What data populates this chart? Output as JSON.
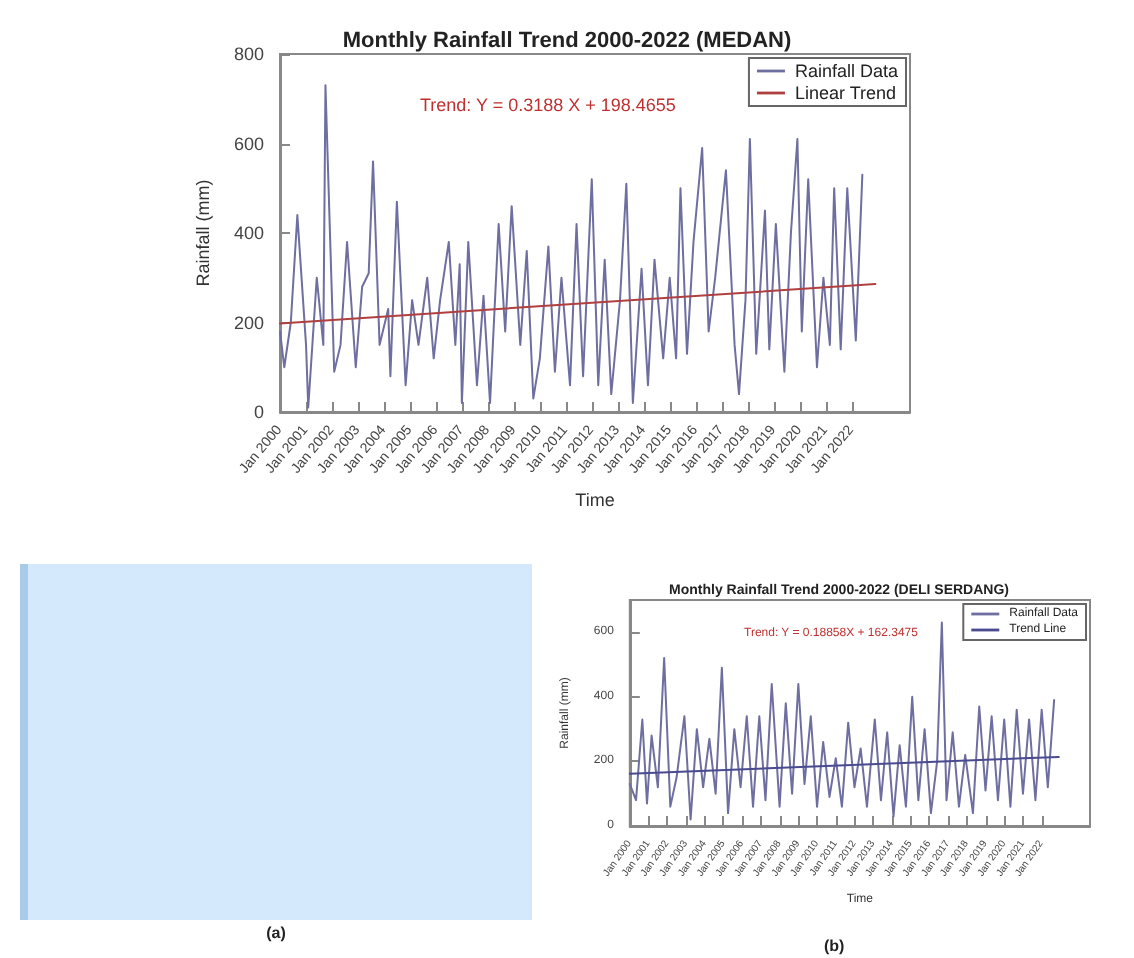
{
  "chart_data": [
    {
      "type": "line",
      "title": "Monthly Rainfall Trend 2000-2022 (MEDAN)",
      "xlabel": "Time",
      "ylabel": "Rainfall (mm)",
      "annotations": [
        "Trend: Y = 0.3188 X + 198.4655"
      ],
      "legend": "top right",
      "xlim": [
        "2000-01",
        "2024-04"
      ],
      "xticks": [
        {
          "value": "2000-01",
          "label": "Jan 2000"
        },
        {
          "value": "2001-01",
          "label": "Jan 2001"
        },
        {
          "value": "2002-01",
          "label": "Jan 2002"
        },
        {
          "value": "2003-01",
          "label": "Jan 2003"
        },
        {
          "value": "2004-01",
          "label": "Jan 2004"
        },
        {
          "value": "2005-01",
          "label": "Jan 2005"
        },
        {
          "value": "2006-01",
          "label": "Jan 2006"
        },
        {
          "value": "2007-01",
          "label": "Jan 2007"
        },
        {
          "value": "2008-01",
          "label": "Jan 2008"
        },
        {
          "value": "2009-01",
          "label": "Jan 2009"
        },
        {
          "value": "2010-01",
          "label": "Jan 2010"
        },
        {
          "value": "2011-01",
          "label": "Jan 2011"
        },
        {
          "value": "2012-01",
          "label": "Jan 2012"
        },
        {
          "value": "2013-01",
          "label": "Jan 2013"
        },
        {
          "value": "2014-01",
          "label": "Jan 2014"
        },
        {
          "value": "2015-01",
          "label": "Jan 2015"
        },
        {
          "value": "2016-01",
          "label": "Jan 2016"
        },
        {
          "value": "2017-01",
          "label": "Jan 2017"
        },
        {
          "value": "2018-01",
          "label": "Jan 2018"
        },
        {
          "value": "2019-01",
          "label": "Jan 2019"
        },
        {
          "value": "2020-01",
          "label": "Jan 2020"
        },
        {
          "value": "2021-01",
          "label": "Jan 2021"
        },
        {
          "value": "2022-01",
          "label": "Jan 2022"
        }
      ],
      "ylim": [
        0,
        800
      ],
      "yticks": [
        0,
        200,
        400,
        600,
        800
      ],
      "series": [
        {
          "name": "Rainfall Data",
          "color": "#6e6ea0",
          "x": [
            "2000-01",
            "2000-03",
            "2000-06",
            "2000-09",
            "2001-01",
            "2001-02",
            "2001-06",
            "2001-09",
            "2001-10",
            "2002-02",
            "2002-05",
            "2002-08",
            "2002-12",
            "2003-03",
            "2003-06",
            "2003-08",
            "2003-11",
            "2004-03",
            "2004-04",
            "2004-07",
            "2004-11",
            "2005-02",
            "2005-05",
            "2005-09",
            "2005-12",
            "2006-03",
            "2006-07",
            "2006-10",
            "2006-12",
            "2007-01",
            "2007-04",
            "2007-08",
            "2007-11",
            "2008-02",
            "2008-06",
            "2008-09",
            "2008-12",
            "2009-04",
            "2009-07",
            "2009-10",
            "2010-01",
            "2010-05",
            "2010-08",
            "2010-11",
            "2011-03",
            "2011-06",
            "2011-09",
            "2012-01",
            "2012-04",
            "2012-07",
            "2012-10",
            "2013-02",
            "2013-05",
            "2013-08",
            "2013-12",
            "2014-03",
            "2014-06",
            "2014-10",
            "2015-01",
            "2015-04",
            "2015-06",
            "2015-09",
            "2015-12",
            "2016-04",
            "2016-07",
            "2016-10",
            "2017-03",
            "2017-07",
            "2017-09",
            "2017-12",
            "2018-02",
            "2018-05",
            "2018-09",
            "2018-11",
            "2019-02",
            "2019-06",
            "2019-09",
            "2019-12",
            "2020-02",
            "2020-05",
            "2020-09",
            "2020-12",
            "2021-03",
            "2021-05",
            "2021-08",
            "2021-11",
            "2022-03",
            "2022-06"
          ],
          "values": [
            180,
            100,
            200,
            440,
            150,
            10,
            300,
            150,
            730,
            90,
            150,
            380,
            100,
            280,
            310,
            560,
            150,
            230,
            80,
            470,
            60,
            250,
            150,
            300,
            120,
            250,
            380,
            150,
            330,
            20,
            380,
            60,
            260,
            20,
            420,
            180,
            460,
            150,
            360,
            30,
            120,
            370,
            90,
            300,
            60,
            420,
            80,
            520,
            60,
            340,
            40,
            250,
            510,
            20,
            320,
            60,
            340,
            120,
            300,
            120,
            500,
            130,
            380,
            590,
            180,
            300,
            540,
            150,
            40,
            250,
            610,
            130,
            450,
            140,
            420,
            90,
            400,
            610,
            180,
            520,
            100,
            300,
            150,
            500,
            140,
            500,
            160,
            530
          ]
        },
        {
          "name": "Linear Trend",
          "color": "#b04040",
          "x": [
            "2000-01",
            "2022-12"
          ],
          "values": [
            198,
            286
          ]
        }
      ]
    },
    {
      "type": "other",
      "annotations": [
        "(a)"
      ]
    },
    {
      "type": "line",
      "title": "Monthly Rainfall Trend 2000-2022 (DELI SERDANG)",
      "xlabel": "Time",
      "ylabel": "Rainfall (mm)",
      "annotations": [
        "Trend: Y = 0.18858X + 162.3475",
        "(b)"
      ],
      "legend": "top right",
      "xlim": [
        "2000-01",
        "2024-08"
      ],
      "xticks": [
        {
          "value": "2000-01",
          "label": "Jan 2000"
        },
        {
          "value": "2001-01",
          "label": "Jan 2001"
        },
        {
          "value": "2002-01",
          "label": "Jan 2002"
        },
        {
          "value": "2003-01",
          "label": "Jan 2003"
        },
        {
          "value": "2004-01",
          "label": "Jan 2004"
        },
        {
          "value": "2005-01",
          "label": "Jan 2005"
        },
        {
          "value": "2006-01",
          "label": "Jan 2006"
        },
        {
          "value": "2007-01",
          "label": "Jan 2007"
        },
        {
          "value": "2008-01",
          "label": "Jan 2008"
        },
        {
          "value": "2009-01",
          "label": "Jan 2009"
        },
        {
          "value": "2010-01",
          "label": "Jan 2010"
        },
        {
          "value": "2011-01",
          "label": "Jan 2011"
        },
        {
          "value": "2012-01",
          "label": "Jan 2012"
        },
        {
          "value": "2013-01",
          "label": "Jan 2013"
        },
        {
          "value": "2014-01",
          "label": "Jan 2014"
        },
        {
          "value": "2015-01",
          "label": "Jan 2015"
        },
        {
          "value": "2016-01",
          "label": "Jan 2016"
        },
        {
          "value": "2017-01",
          "label": "Jan 2017"
        },
        {
          "value": "2018-01",
          "label": "Jan 2018"
        },
        {
          "value": "2019-01",
          "label": "Jan 2019"
        },
        {
          "value": "2020-01",
          "label": "Jan 2020"
        },
        {
          "value": "2021-01",
          "label": "Jan 2021"
        },
        {
          "value": "2022-01",
          "label": "Jan 2022"
        }
      ],
      "ylim": [
        0,
        700
      ],
      "yticks": [
        0,
        200,
        400,
        600
      ],
      "series": [
        {
          "name": "Rainfall Data",
          "color": "#6e6ea0",
          "x": [
            "2000-01",
            "2000-05",
            "2000-09",
            "2000-12",
            "2001-03",
            "2001-07",
            "2001-11",
            "2002-03",
            "2002-07",
            "2002-12",
            "2003-04",
            "2003-08",
            "2003-12",
            "2004-04",
            "2004-08",
            "2004-12",
            "2005-04",
            "2005-08",
            "2005-12",
            "2006-04",
            "2006-08",
            "2006-12",
            "2007-04",
            "2007-08",
            "2008-01",
            "2008-05",
            "2008-09",
            "2009-01",
            "2009-05",
            "2009-09",
            "2010-01",
            "2010-05",
            "2010-09",
            "2011-01",
            "2011-05",
            "2011-09",
            "2012-01",
            "2012-05",
            "2012-09",
            "2013-02",
            "2013-06",
            "2013-10",
            "2014-02",
            "2014-06",
            "2014-10",
            "2015-02",
            "2015-06",
            "2015-10",
            "2016-02",
            "2016-06",
            "2016-09",
            "2016-12",
            "2017-04",
            "2017-08",
            "2017-12",
            "2018-05",
            "2018-09",
            "2019-01",
            "2019-05",
            "2019-09",
            "2020-01",
            "2020-05",
            "2020-09",
            "2021-01",
            "2021-05",
            "2021-09",
            "2022-01",
            "2022-05",
            "2022-09"
          ],
          "values": [
            130,
            80,
            330,
            70,
            280,
            120,
            520,
            60,
            150,
            340,
            20,
            300,
            120,
            270,
            100,
            490,
            40,
            300,
            120,
            340,
            60,
            340,
            80,
            440,
            60,
            380,
            100,
            440,
            130,
            340,
            60,
            260,
            90,
            210,
            60,
            320,
            120,
            240,
            60,
            330,
            80,
            290,
            30,
            250,
            60,
            400,
            80,
            300,
            40,
            200,
            630,
            80,
            290,
            60,
            220,
            40,
            370,
            110,
            340,
            80,
            330,
            60,
            360,
            100,
            330,
            80,
            360,
            120,
            390
          ]
        },
        {
          "name": "Trend Line",
          "color": "#4a4a90",
          "x": [
            "2000-01",
            "2022-12"
          ],
          "values": [
            162,
            214
          ]
        }
      ]
    }
  ]
}
